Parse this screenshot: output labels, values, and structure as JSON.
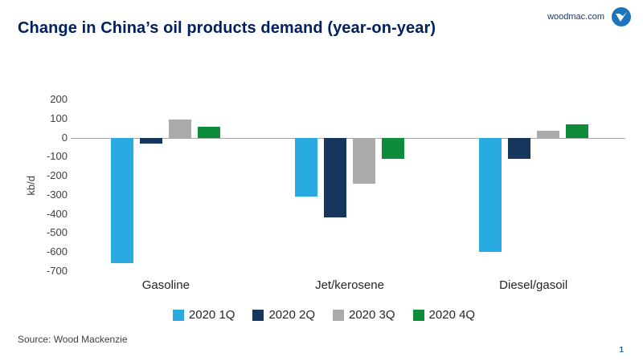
{
  "header": {
    "title": "Change in China’s oil products demand (year-on-year)",
    "website": "woodmac.com",
    "logo_icon": "verisk-circle-logo",
    "logo_color": "#1C75BC"
  },
  "chart_data": {
    "type": "bar",
    "title": "Change in China’s oil products demand (year-on-year)",
    "categories": [
      "Gasoline",
      "Jet/kerosene",
      "Diesel/gasoil"
    ],
    "series": [
      {
        "name": "2020 1Q",
        "color": "#29ABE2",
        "values": [
          -660,
          -310,
          -600
        ]
      },
      {
        "name": "2020 2Q",
        "color": "#17365D",
        "values": [
          -30,
          -420,
          -110
        ]
      },
      {
        "name": "2020 3Q",
        "color": "#ABABAB",
        "values": [
          95,
          -240,
          35
        ]
      },
      {
        "name": "2020 4Q",
        "color": "#0E8C3A",
        "values": [
          55,
          -110,
          70
        ]
      }
    ],
    "xlabel": "",
    "ylabel": "kb/d",
    "ylim": [
      -700,
      200
    ],
    "yticks": [
      200,
      100,
      0,
      -100,
      -200,
      -300,
      -400,
      -500,
      -600,
      -700
    ],
    "grid": false,
    "legend_position": "bottom"
  },
  "footer": {
    "source": "Source: Wood Mackenzie",
    "page_number": "1"
  }
}
